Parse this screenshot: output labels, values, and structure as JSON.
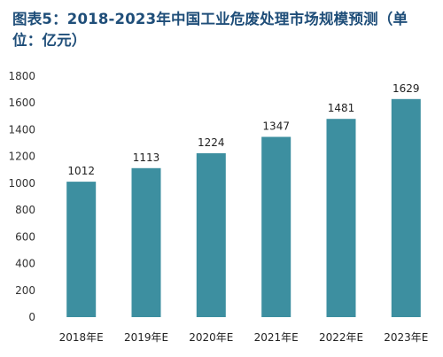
{
  "chart_data": {
    "type": "bar",
    "title": "图表5：2018-2023年中国工业危废处理市场规模预测（单位：亿元）",
    "categories": [
      "2018年E",
      "2019年E",
      "2020年E",
      "2021年E",
      "2022年E",
      "2023年E"
    ],
    "values": [
      1012,
      1113,
      1224,
      1347,
      1481,
      1629
    ],
    "data_labels": [
      "1012",
      "1113",
      "1224",
      "1347",
      "1481",
      "1629"
    ],
    "yticks": [
      0,
      200,
      400,
      600,
      800,
      1000,
      1200,
      1400,
      1600,
      1800
    ],
    "ylim": [
      0,
      1800
    ],
    "grid": false,
    "bar_color": "#3d8fa0"
  }
}
